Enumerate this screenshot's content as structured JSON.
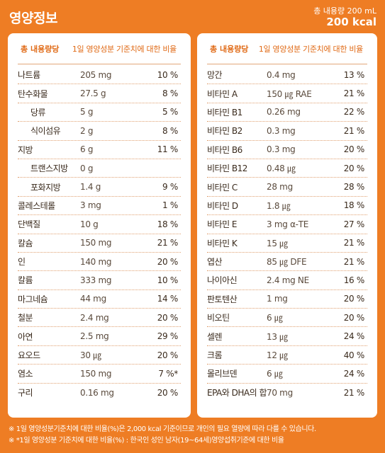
{
  "header": {
    "title": "영양정보",
    "total_volume": "총 내용량 200 mL",
    "kcal": "200 kcal"
  },
  "table_head": {
    "total_label": "총 내용량당",
    "daily_label": "1일 영양성분 기준치에 대한 비율"
  },
  "left_rows": [
    {
      "name": "나트륨",
      "amount": "205 mg",
      "pct": "10 %",
      "sub": false
    },
    {
      "name": "탄수화물",
      "amount": "27.5 g",
      "pct": "8 %",
      "sub": false
    },
    {
      "name": "당류",
      "amount": "5 g",
      "pct": "5 %",
      "sub": true
    },
    {
      "name": "식이섬유",
      "amount": "2 g",
      "pct": "8 %",
      "sub": true
    },
    {
      "name": "지방",
      "amount": "6 g",
      "pct": "11 %",
      "sub": false
    },
    {
      "name": "트랜스지방",
      "amount": "0 g",
      "pct": "",
      "sub": true
    },
    {
      "name": "포화지방",
      "amount": "1.4 g",
      "pct": "9 %",
      "sub": true
    },
    {
      "name": "콜레스테롤",
      "amount": "3 mg",
      "pct": "1 %",
      "sub": false
    },
    {
      "name": "단백질",
      "amount": "10 g",
      "pct": "18 %",
      "sub": false
    },
    {
      "name": "칼슘",
      "amount": "150 mg",
      "pct": "21 %",
      "sub": false
    },
    {
      "name": "인",
      "amount": "140 mg",
      "pct": "20 %",
      "sub": false
    },
    {
      "name": "칼륨",
      "amount": "333 mg",
      "pct": "10 %",
      "sub": false
    },
    {
      "name": "마그네슘",
      "amount": "44 mg",
      "pct": "14 %",
      "sub": false
    },
    {
      "name": "철분",
      "amount": "2.4 mg",
      "pct": "20 %",
      "sub": false
    },
    {
      "name": "아연",
      "amount": "2.5 mg",
      "pct": "29 %",
      "sub": false
    },
    {
      "name": "요오드",
      "amount": "30 ㎍",
      "pct": "20 %",
      "sub": false
    },
    {
      "name": "염소",
      "amount": "150 mg",
      "pct": "7 %*",
      "sub": false
    },
    {
      "name": "구리",
      "amount": "0.16 mg",
      "pct": "20 %",
      "sub": false
    }
  ],
  "right_rows": [
    {
      "name": "망간",
      "amount": "0.4 mg",
      "pct": "13 %"
    },
    {
      "name": "비타민 A",
      "amount": "150 ㎍ RAE",
      "pct": "21 %"
    },
    {
      "name": "비타민 B1",
      "amount": "0.26 mg",
      "pct": "22 %"
    },
    {
      "name": "비타민 B2",
      "amount": "0.3 mg",
      "pct": "21 %"
    },
    {
      "name": "비타민 B6",
      "amount": "0.3 mg",
      "pct": "20 %"
    },
    {
      "name": "비타민 B12",
      "amount": "0.48 ㎍",
      "pct": "20 %"
    },
    {
      "name": "비타민 C",
      "amount": "28 mg",
      "pct": "28 %"
    },
    {
      "name": "비타민 D",
      "amount": "1.8 ㎍",
      "pct": "18 %"
    },
    {
      "name": "비타민 E",
      "amount": "3 mg α-TE",
      "pct": "27 %"
    },
    {
      "name": "비타민 K",
      "amount": "15 ㎍",
      "pct": "21 %"
    },
    {
      "name": "엽산",
      "amount": "85 ㎍ DFE",
      "pct": "21 %"
    },
    {
      "name": "나이아신",
      "amount": "2.4 mg NE",
      "pct": "16 %"
    },
    {
      "name": "판토텐산",
      "amount": "1 mg",
      "pct": "20 %"
    },
    {
      "name": "비오틴",
      "amount": "6 ㎍",
      "pct": "20 %"
    },
    {
      "name": "셀렌",
      "amount": "13 ㎍",
      "pct": "24 %"
    },
    {
      "name": "크롬",
      "amount": "12 ㎍",
      "pct": "40 %"
    },
    {
      "name": "몰리브덴",
      "amount": "6 ㎍",
      "pct": "24 %"
    },
    {
      "name": "EPA와 DHA의 합",
      "amount": "70 mg",
      "pct": "21 %"
    }
  ],
  "footer": {
    "note1": "※ 1일 영양성분기준치에 대한 비율(%)은 2,000 kcal 기준이므로 개인의 필요 열량에 따라 다를 수 있습니다.",
    "note2": "※ *1일 영양성분 기준치에 대한 비율(%) : 한국인 성인 남자(19~64세)영양섭취기준에 대한 비율"
  }
}
